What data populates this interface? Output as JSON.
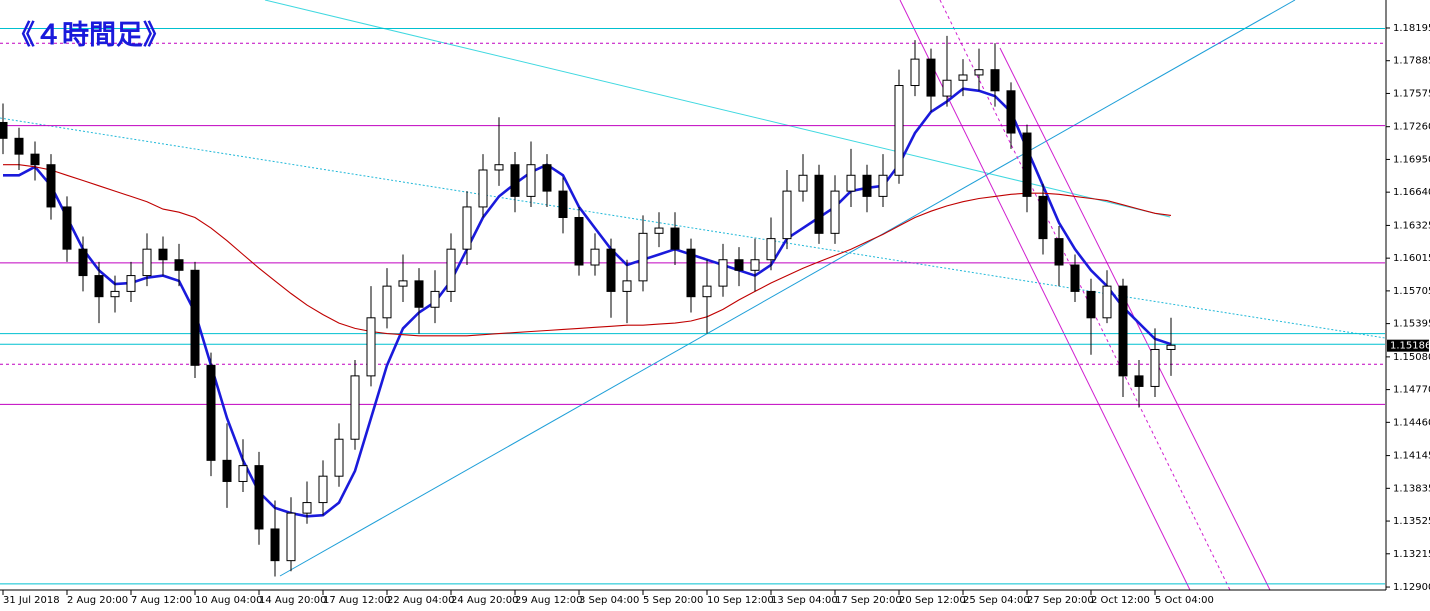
{
  "chart_data": {
    "type": "candlestick",
    "title": "《４時間足》",
    "x": [
      0,
      4,
      8,
      12,
      16,
      20,
      24,
      28,
      32,
      36,
      40,
      44,
      48,
      52,
      56,
      60,
      64,
      68,
      72,
      76,
      80,
      84,
      88,
      92,
      96,
      100,
      104,
      108,
      112,
      116,
      120,
      124,
      128,
      132,
      136,
      140,
      144,
      148,
      152,
      156,
      160,
      164,
      168,
      172,
      176,
      180,
      184,
      188,
      192,
      196,
      200,
      204,
      208,
      212,
      216,
      220,
      224,
      228,
      232,
      236,
      240,
      244,
      248,
      252,
      256,
      260,
      264,
      268,
      272,
      276,
      280,
      284,
      288,
      292
    ],
    "open": [
      1.173,
      1.1715,
      1.17,
      1.169,
      1.165,
      1.161,
      1.1585,
      1.1565,
      1.157,
      1.1585,
      1.161,
      1.16,
      1.159,
      1.15,
      1.141,
      1.139,
      1.1405,
      1.1345,
      1.1315,
      1.136,
      1.137,
      1.1395,
      1.143,
      1.149,
      1.1545,
      1.1575,
      1.158,
      1.1555,
      1.157,
      1.161,
      1.165,
      1.1685,
      1.169,
      1.166,
      1.169,
      1.1665,
      1.164,
      1.1595,
      1.161,
      1.157,
      1.158,
      1.1625,
      1.163,
      1.161,
      1.1565,
      1.1575,
      1.16,
      1.159,
      1.16,
      1.162,
      1.1665,
      1.168,
      1.1625,
      1.1665,
      1.168,
      1.166,
      1.168,
      1.1765,
      1.179,
      1.1755,
      1.177,
      1.1775,
      1.178,
      1.176,
      1.172,
      1.166,
      1.162,
      1.1595,
      1.157,
      1.1545,
      1.1575,
      1.149,
      1.148,
      1.1515
    ],
    "high": [
      1.1748,
      1.1725,
      1.1712,
      1.17,
      1.166,
      1.1622,
      1.1598,
      1.1585,
      1.1598,
      1.1625,
      1.1622,
      1.1615,
      1.1598,
      1.1512,
      1.1445,
      1.143,
      1.1418,
      1.1372,
      1.1375,
      1.139,
      1.141,
      1.1445,
      1.1505,
      1.1575,
      1.1592,
      1.1605,
      1.1592,
      1.159,
      1.1625,
      1.1665,
      1.17,
      1.1735,
      1.1702,
      1.1712,
      1.17,
      1.1678,
      1.165,
      1.1625,
      1.162,
      1.16,
      1.1642,
      1.1645,
      1.1645,
      1.162,
      1.16,
      1.1615,
      1.1612,
      1.162,
      1.164,
      1.1685,
      1.17,
      1.169,
      1.168,
      1.1705,
      1.169,
      1.17,
      1.178,
      1.1808,
      1.18,
      1.1812,
      1.179,
      1.18,
      1.1805,
      1.1768,
      1.1728,
      1.1672,
      1.1632,
      1.1605,
      1.1582,
      1.159,
      1.1582,
      1.1505,
      1.1535,
      1.1545
    ],
    "low": [
      1.17,
      1.1685,
      1.1675,
      1.1638,
      1.1598,
      1.157,
      1.154,
      1.155,
      1.156,
      1.1575,
      1.1585,
      1.1575,
      1.1488,
      1.1395,
      1.1365,
      1.138,
      1.133,
      1.13,
      1.1305,
      1.135,
      1.1358,
      1.1385,
      1.142,
      1.148,
      1.1535,
      1.156,
      1.153,
      1.154,
      1.156,
      1.1595,
      1.164,
      1.167,
      1.1645,
      1.165,
      1.165,
      1.1625,
      1.1585,
      1.1585,
      1.1545,
      1.154,
      1.157,
      1.1612,
      1.1595,
      1.155,
      1.153,
      1.1565,
      1.1575,
      1.157,
      1.159,
      1.161,
      1.1655,
      1.1615,
      1.1615,
      1.165,
      1.1645,
      1.165,
      1.1672,
      1.1755,
      1.174,
      1.1745,
      1.1755,
      1.176,
      1.1745,
      1.1705,
      1.1645,
      1.1605,
      1.1575,
      1.156,
      1.151,
      1.154,
      1.147,
      1.146,
      1.147,
      1.149
    ],
    "close": [
      1.1715,
      1.17,
      1.169,
      1.165,
      1.161,
      1.1585,
      1.1565,
      1.157,
      1.1585,
      1.161,
      1.16,
      1.159,
      1.15,
      1.141,
      1.139,
      1.1405,
      1.1345,
      1.1315,
      1.136,
      1.137,
      1.1395,
      1.143,
      1.149,
      1.1545,
      1.1575,
      1.158,
      1.1555,
      1.157,
      1.161,
      1.165,
      1.1685,
      1.169,
      1.166,
      1.169,
      1.1665,
      1.164,
      1.1595,
      1.161,
      1.157,
      1.158,
      1.1625,
      1.163,
      1.161,
      1.1565,
      1.1575,
      1.16,
      1.159,
      1.16,
      1.162,
      1.1665,
      1.168,
      1.1625,
      1.1665,
      1.168,
      1.166,
      1.168,
      1.1765,
      1.179,
      1.1755,
      1.177,
      1.1775,
      1.178,
      1.176,
      1.172,
      1.166,
      1.162,
      1.1595,
      1.157,
      1.1545,
      1.1575,
      1.149,
      1.148,
      1.1515,
      1.1519
    ],
    "up_color": "#ffffff",
    "down_color": "#000000",
    "series": [
      {
        "color": "#1a1adb",
        "values": [
          1.168,
          1.168,
          1.1688,
          1.167,
          1.164,
          1.161,
          1.159,
          1.1577,
          1.1578,
          1.1583,
          1.1585,
          1.158,
          1.155,
          1.15,
          1.145,
          1.141,
          1.138,
          1.1365,
          1.136,
          1.1357,
          1.1358,
          1.137,
          1.14,
          1.145,
          1.15,
          1.1535,
          1.155,
          1.156,
          1.158,
          1.161,
          1.164,
          1.166,
          1.1672,
          1.1683,
          1.169,
          1.168,
          1.165,
          1.163,
          1.161,
          1.1595,
          1.16,
          1.1605,
          1.161,
          1.1605,
          1.16,
          1.1595,
          1.159,
          1.1585,
          1.1595,
          1.162,
          1.163,
          1.164,
          1.165,
          1.1665,
          1.1668,
          1.167,
          1.169,
          1.172,
          1.174,
          1.175,
          1.1762,
          1.176,
          1.1755,
          1.174,
          1.1705,
          1.167,
          1.1635,
          1.161,
          1.159,
          1.1575,
          1.1555,
          1.154,
          1.1525,
          1.152
        ]
      },
      {
        "color": "#c00000",
        "values": [
          1.169,
          1.169,
          1.1688,
          1.1685,
          1.168,
          1.1675,
          1.167,
          1.1665,
          1.166,
          1.1655,
          1.1648,
          1.1645,
          1.164,
          1.163,
          1.1618,
          1.1605,
          1.1592,
          1.158,
          1.1568,
          1.1557,
          1.1548,
          1.154,
          1.1535,
          1.1532,
          1.153,
          1.1529,
          1.1528,
          1.1528,
          1.1528,
          1.1528,
          1.1529,
          1.153,
          1.1531,
          1.1532,
          1.1533,
          1.1534,
          1.1535,
          1.1536,
          1.1537,
          1.1538,
          1.1538,
          1.1539,
          1.154,
          1.1542,
          1.1546,
          1.1553,
          1.1562,
          1.157,
          1.1578,
          1.1585,
          1.1592,
          1.1598,
          1.1604,
          1.161,
          1.1617,
          1.1624,
          1.1632,
          1.164,
          1.1646,
          1.1651,
          1.1655,
          1.1658,
          1.166,
          1.1662,
          1.1663,
          1.1663,
          1.1662,
          1.166,
          1.1658,
          1.1656,
          1.1652,
          1.1648,
          1.1644,
          1.1642
        ]
      }
    ],
    "levels": [
      {
        "value": 1.1819,
        "color": "#00c0d0",
        "dash": false
      },
      {
        "value": 1.1805,
        "color": "#c000c0",
        "dash": true
      },
      {
        "value": 1.1727,
        "color": "#c000c0",
        "dash": false
      },
      {
        "value": 1.1597,
        "color": "#c000c0",
        "dash": false
      },
      {
        "value": 1.153,
        "color": "#00c0d0",
        "dash": false
      },
      {
        "value": 1.152,
        "color": "#00c0d0",
        "dash": false
      },
      {
        "value": 1.1501,
        "color": "#c000c0",
        "dash": true
      },
      {
        "value": 1.1463,
        "color": "#c000c0",
        "dash": false
      },
      {
        "value": 1.1293,
        "color": "#00c0d0",
        "dash": false
      }
    ],
    "last_price": {
      "value": 1.15186,
      "label": "1.15186"
    },
    "xlim": [
      -0.75,
      345.5
    ],
    "ylim": [
      1.12872,
      1.1846
    ],
    "xticks": [
      {
        "value": 0,
        "label": "31 Jul 2018"
      },
      {
        "value": 16,
        "label": "2 Aug 20:00"
      },
      {
        "value": 32,
        "label": "7 Aug 12:00"
      },
      {
        "value": 48,
        "label": "10 Aug 04:00"
      },
      {
        "value": 64,
        "label": "14 Aug 20:00"
      },
      {
        "value": 80,
        "label": "17 Aug 12:00"
      },
      {
        "value": 96,
        "label": "22 Aug 04:00"
      },
      {
        "value": 112,
        "label": "24 Aug 20:00"
      },
      {
        "value": 128,
        "label": "29 Aug 12:00"
      },
      {
        "value": 144,
        "label": "3 Sep 04:00"
      },
      {
        "value": 160,
        "label": "5 Sep 20:00"
      },
      {
        "value": 176,
        "label": "10 Sep 12:00"
      },
      {
        "value": 192,
        "label": "13 Sep 04:00"
      },
      {
        "value": 208,
        "label": "17 Sep 20:00"
      },
      {
        "value": 224,
        "label": "20 Sep 12:00"
      },
      {
        "value": 240,
        "label": "25 Sep 04:00"
      },
      {
        "value": 256,
        "label": "27 Sep 20:00"
      },
      {
        "value": 272,
        "label": "2 Oct 12:00"
      },
      {
        "value": 288,
        "label": "5 Oct 04:00"
      }
    ],
    "yticks": [
      1.18195,
      1.17885,
      1.17575,
      {
        "value": 1.1726,
        "label": "1.17260"
      },
      {
        "value": 1.1695,
        "label": "1.16950"
      },
      {
        "value": 1.1664,
        "label": "1.16640"
      },
      1.16325,
      1.16015,
      1.15705,
      1.15395,
      {
        "value": 1.1508,
        "label": "1.15080"
      },
      {
        "value": 1.1477,
        "label": "1.14770"
      },
      {
        "value": 1.1446,
        "label": "1.14460"
      },
      1.14145,
      1.13835,
      1.13525,
      1.13215,
      {
        "value": 1.129,
        "label": "1.12900"
      }
    ]
  }
}
